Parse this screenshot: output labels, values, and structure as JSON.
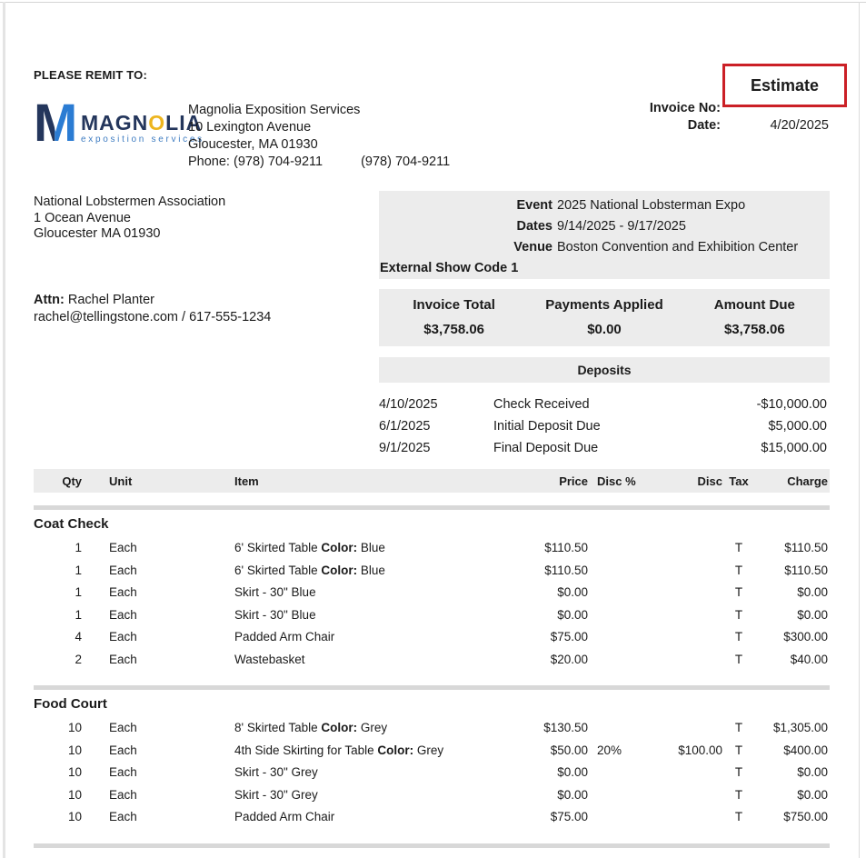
{
  "header": {
    "remit_label": "PLEASE REMIT TO:",
    "logo": {
      "monogram": "M",
      "word_part1": "MAGN",
      "word_o": "O",
      "word_part2": "LIA",
      "tagline": "exposition services"
    },
    "company": {
      "name": "Magnolia Exposition Services",
      "address_line1": "10 Lexington Avenue",
      "address_line2": "Gloucester, MA 01930",
      "phone_label": "Phone:",
      "phone1": "(978) 704-9211",
      "phone2": "(978) 704-9211"
    },
    "doc_type": "Estimate",
    "invoice_no_label": "Invoice No:",
    "invoice_no_value": "",
    "date_label": "Date:",
    "date_value": "4/20/2025"
  },
  "bill_to": {
    "name": "National Lobstermen Association",
    "address_line1": "1 Ocean Avenue",
    "address_line2": "Gloucester MA 01930",
    "attn_label": "Attn:",
    "attn_name": "Rachel Planter",
    "contact": "rachel@tellingstone.com / 617-555-1234"
  },
  "event_info": {
    "rows": [
      {
        "label": "Event",
        "value": "2025 National Lobsterman Expo"
      },
      {
        "label": "Dates",
        "value": "9/14/2025 - 9/17/2025"
      },
      {
        "label": "Venue",
        "value": "Boston Convention and Exhibition Center"
      }
    ],
    "show_code_label": "External Show Code",
    "show_code_value": "1"
  },
  "summary": {
    "columns": [
      {
        "label": "Invoice Total",
        "value": "$3,758.06"
      },
      {
        "label": "Payments Applied",
        "value": "$0.00"
      },
      {
        "label": "Amount Due",
        "value": "$3,758.06"
      }
    ]
  },
  "deposits": {
    "title": "Deposits",
    "rows": [
      {
        "date": "4/10/2025",
        "description": "Check Received",
        "amount": "-$10,000.00"
      },
      {
        "date": "6/1/2025",
        "description": "Initial Deposit Due",
        "amount": "$5,000.00"
      },
      {
        "date": "9/1/2025",
        "description": "Final Deposit Due",
        "amount": "$15,000.00"
      }
    ]
  },
  "items": {
    "headers": {
      "qty": "Qty",
      "unit": "Unit",
      "item": "Item",
      "price": "Price",
      "disc_pct": "Disc %",
      "disc": "Disc",
      "tax": "Tax",
      "charge": "Charge"
    },
    "sections": [
      {
        "name": "Coat Check",
        "rows": [
          {
            "qty": "1",
            "unit": "Each",
            "item": "6' Skirted Table",
            "color_label": "Color:",
            "color_value": "Blue",
            "price": "$110.50",
            "disc_pct": "",
            "disc": "",
            "tax": "T",
            "charge": "$110.50"
          },
          {
            "qty": "1",
            "unit": "Each",
            "item": "6' Skirted Table",
            "color_label": "Color:",
            "color_value": "Blue",
            "price": "$110.50",
            "disc_pct": "",
            "disc": "",
            "tax": "T",
            "charge": "$110.50"
          },
          {
            "qty": "1",
            "unit": "Each",
            "item": "Skirt - 30\" Blue",
            "color_label": "",
            "color_value": "",
            "price": "$0.00",
            "disc_pct": "",
            "disc": "",
            "tax": "T",
            "charge": "$0.00"
          },
          {
            "qty": "1",
            "unit": "Each",
            "item": "Skirt - 30\" Blue",
            "color_label": "",
            "color_value": "",
            "price": "$0.00",
            "disc_pct": "",
            "disc": "",
            "tax": "T",
            "charge": "$0.00"
          },
          {
            "qty": "4",
            "unit": "Each",
            "item": "Padded Arm Chair",
            "color_label": "",
            "color_value": "",
            "price": "$75.00",
            "disc_pct": "",
            "disc": "",
            "tax": "T",
            "charge": "$300.00"
          },
          {
            "qty": "2",
            "unit": "Each",
            "item": "Wastebasket",
            "color_label": "",
            "color_value": "",
            "price": "$20.00",
            "disc_pct": "",
            "disc": "",
            "tax": "T",
            "charge": "$40.00"
          }
        ]
      },
      {
        "name": "Food Court",
        "rows": [
          {
            "qty": "10",
            "unit": "Each",
            "item": "8' Skirted Table",
            "color_label": "Color:",
            "color_value": "Grey",
            "price": "$130.50",
            "disc_pct": "",
            "disc": "",
            "tax": "T",
            "charge": "$1,305.00"
          },
          {
            "qty": "10",
            "unit": "Each",
            "item": "4th Side Skirting for Table",
            "color_label": "Color:",
            "color_value": "Grey",
            "price": "$50.00",
            "disc_pct": "20%",
            "disc": "$100.00",
            "tax": "T",
            "charge": "$400.00"
          },
          {
            "qty": "10",
            "unit": "Each",
            "item": "Skirt - 30\" Grey",
            "color_label": "",
            "color_value": "",
            "price": "$0.00",
            "disc_pct": "",
            "disc": "",
            "tax": "T",
            "charge": "$0.00"
          },
          {
            "qty": "10",
            "unit": "Each",
            "item": "Skirt - 30\" Grey",
            "color_label": "",
            "color_value": "",
            "price": "$0.00",
            "disc_pct": "",
            "disc": "",
            "tax": "T",
            "charge": "$0.00"
          },
          {
            "qty": "10",
            "unit": "Each",
            "item": "Padded Arm Chair",
            "color_label": "",
            "color_value": "",
            "price": "$75.00",
            "disc_pct": "",
            "disc": "",
            "tax": "T",
            "charge": "$750.00"
          }
        ]
      }
    ]
  },
  "colors": {
    "accent_red": "#cb2026",
    "panel_gray": "#ececec",
    "separator_gray": "#d8d8d8",
    "logo_navy": "#24365c",
    "logo_blue": "#2b7cd3",
    "logo_gold": "#edb51e",
    "logo_tagline_blue": "#3e7cc1"
  }
}
